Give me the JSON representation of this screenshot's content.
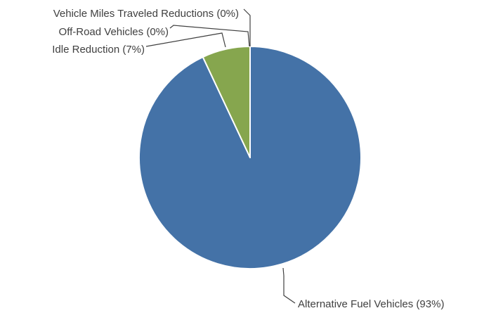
{
  "chart_data": {
    "type": "pie",
    "title": "",
    "slices": [
      {
        "label": "Alternative Fuel Vehicles (93%)",
        "value": 93,
        "color": "#4472A7"
      },
      {
        "label": "Idle Reduction (7%)",
        "value": 7,
        "color": "#86A64E"
      },
      {
        "label": "Off-Road Vehicles (0%)",
        "value": 0,
        "color": "#A64A47"
      },
      {
        "label": "Vehicle Miles Traveled Reductions (0%)",
        "value": 0,
        "color": "#7A5FA0"
      }
    ],
    "slice_border_color": "#FFFFFF",
    "label_color": "#404040",
    "legend": "none",
    "data_labels": "outside with leader lines"
  }
}
